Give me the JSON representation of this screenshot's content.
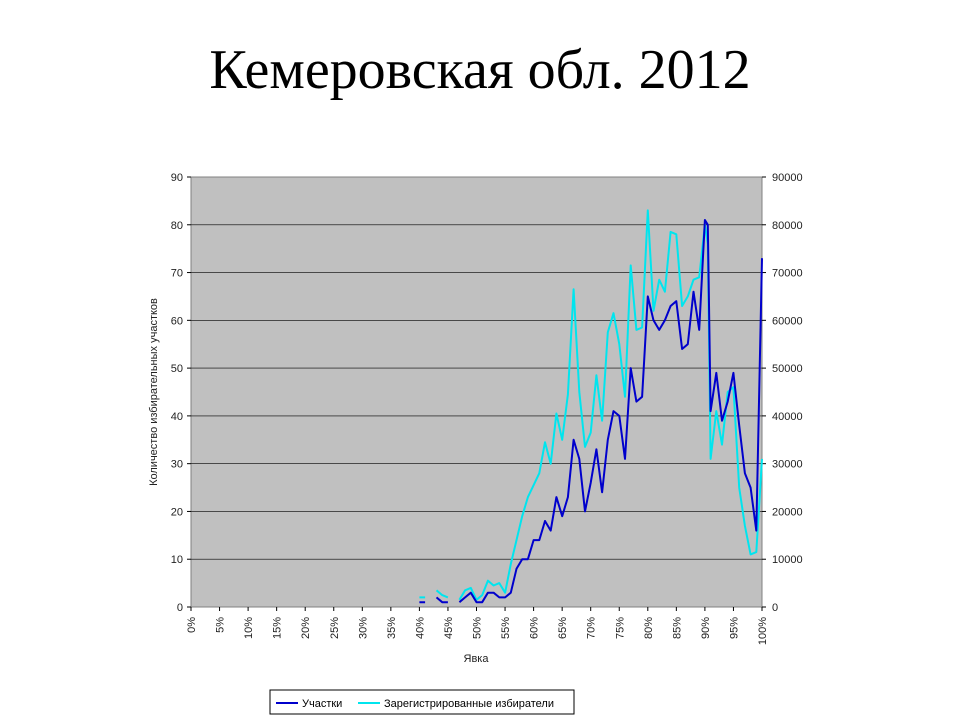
{
  "slide": {
    "title": "Кемеровская обл. 2012"
  },
  "chart_data": {
    "type": "line",
    "title": "Кемеровская обл. 2012",
    "xlabel": "Явка",
    "ylabel": "Количество избирательных участков",
    "y2label": "",
    "xlim": [
      0,
      100
    ],
    "ylim": [
      0,
      90
    ],
    "y2lim": [
      0,
      90000
    ],
    "x_tick_labels": [
      "0%",
      "5%",
      "10%",
      "15%",
      "20%",
      "25%",
      "30%",
      "35%",
      "40%",
      "45%",
      "50%",
      "55%",
      "60%",
      "65%",
      "70%",
      "75%",
      "80%",
      "85%",
      "90%",
      "95%",
      "100%"
    ],
    "y_tick_labels": [
      "0",
      "10",
      "20",
      "30",
      "40",
      "50",
      "60",
      "70",
      "80",
      "90"
    ],
    "y2_tick_labels": [
      "0",
      "10000",
      "20000",
      "30000",
      "40000",
      "50000",
      "60000",
      "70000",
      "80000",
      "90000"
    ],
    "grid": true,
    "legend_position": "bottom",
    "series": [
      {
        "name": "Участки",
        "axis": "left",
        "color": "#0000cc",
        "points": [
          [
            40,
            1
          ],
          [
            41,
            1
          ],
          [
            null,
            null
          ],
          [
            43,
            2
          ],
          [
            44,
            1
          ],
          [
            45,
            1
          ],
          [
            null,
            null
          ],
          [
            47,
            1
          ],
          [
            48,
            2
          ],
          [
            49,
            3
          ],
          [
            50,
            1
          ],
          [
            51,
            1
          ],
          [
            52,
            3
          ],
          [
            53,
            3
          ],
          [
            54,
            2
          ],
          [
            55,
            2
          ],
          [
            56,
            3
          ],
          [
            57,
            8
          ],
          [
            58,
            10
          ],
          [
            59,
            10
          ],
          [
            60,
            14
          ],
          [
            61,
            14
          ],
          [
            62,
            18
          ],
          [
            63,
            16
          ],
          [
            64,
            23
          ],
          [
            65,
            19
          ],
          [
            66,
            23
          ],
          [
            67,
            35
          ],
          [
            68,
            31
          ],
          [
            69,
            20
          ],
          [
            70,
            26
          ],
          [
            71,
            33
          ],
          [
            72,
            24
          ],
          [
            73,
            35
          ],
          [
            74,
            41
          ],
          [
            75,
            40
          ],
          [
            76,
            31
          ],
          [
            77,
            50
          ],
          [
            78,
            43
          ],
          [
            79,
            44
          ],
          [
            80,
            65
          ],
          [
            81,
            60
          ],
          [
            82,
            58
          ],
          [
            83,
            60
          ],
          [
            84,
            63
          ],
          [
            85,
            64
          ],
          [
            86,
            54
          ],
          [
            87,
            55
          ],
          [
            88,
            66
          ],
          [
            89,
            58
          ],
          [
            90,
            81
          ],
          [
            90.5,
            80
          ],
          [
            91,
            41
          ],
          [
            92,
            49
          ],
          [
            93,
            39
          ],
          [
            94,
            43
          ],
          [
            95,
            49
          ],
          [
            96,
            38
          ],
          [
            97,
            28
          ],
          [
            98,
            25
          ],
          [
            99,
            16
          ],
          [
            100,
            73
          ]
        ]
      },
      {
        "name": "Зарегистрированные избиратели",
        "axis": "right",
        "color": "#00e5ee",
        "points": [
          [
            40,
            2000
          ],
          [
            41,
            2000
          ],
          [
            null,
            null
          ],
          [
            43,
            3500
          ],
          [
            44,
            2500
          ],
          [
            45,
            2000
          ],
          [
            null,
            null
          ],
          [
            47,
            1500
          ],
          [
            48,
            3500
          ],
          [
            49,
            4000
          ],
          [
            50,
            1500
          ],
          [
            51,
            2500
          ],
          [
            52,
            5500
          ],
          [
            53,
            4500
          ],
          [
            54,
            5000
          ],
          [
            55,
            3000
          ],
          [
            56,
            9000
          ],
          [
            57,
            14000
          ],
          [
            58,
            19000
          ],
          [
            59,
            23000
          ],
          [
            60,
            25500
          ],
          [
            61,
            28000
          ],
          [
            62,
            34500
          ],
          [
            63,
            30000
          ],
          [
            64,
            40500
          ],
          [
            65,
            35000
          ],
          [
            66,
            44500
          ],
          [
            67,
            66500
          ],
          [
            68,
            45000
          ],
          [
            69,
            33500
          ],
          [
            70,
            36500
          ],
          [
            71,
            48500
          ],
          [
            72,
            39000
          ],
          [
            73,
            57500
          ],
          [
            74,
            61500
          ],
          [
            75,
            55000
          ],
          [
            76,
            44000
          ],
          [
            77,
            71500
          ],
          [
            78,
            58000
          ],
          [
            79,
            58500
          ],
          [
            80,
            83000
          ],
          [
            81,
            62000
          ],
          [
            82,
            68500
          ],
          [
            83,
            66000
          ],
          [
            84,
            78500
          ],
          [
            85,
            78000
          ],
          [
            86,
            63000
          ],
          [
            87,
            65000
          ],
          [
            88,
            68500
          ],
          [
            89,
            69000
          ],
          [
            90,
            80000
          ],
          [
            90.5,
            76000
          ],
          [
            91,
            31000
          ],
          [
            92,
            41000
          ],
          [
            93,
            34000
          ],
          [
            94,
            45000
          ],
          [
            95,
            46000
          ],
          [
            96,
            25000
          ],
          [
            97,
            17000
          ],
          [
            98,
            11000
          ],
          [
            99,
            11500
          ],
          [
            100,
            31000
          ]
        ]
      }
    ]
  }
}
